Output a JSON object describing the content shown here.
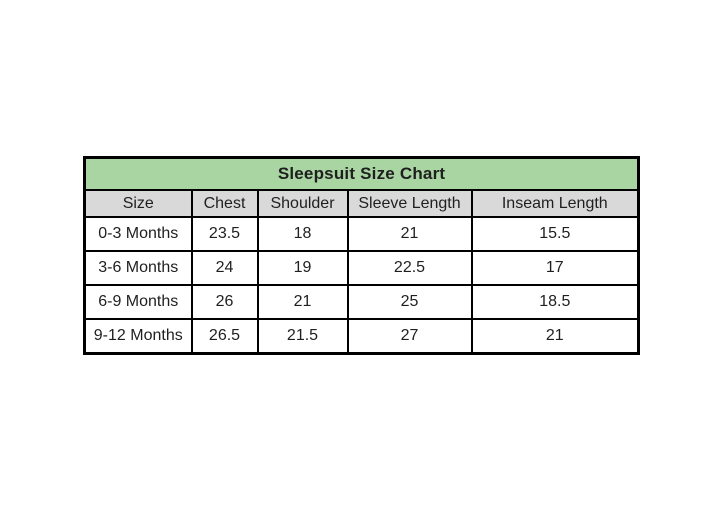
{
  "page": {
    "background_color": "#ffffff"
  },
  "table": {
    "title": "Sleepsuit Size Chart",
    "header": [
      "Size",
      "Chest",
      "Shoulder",
      "Sleeve Length",
      "Inseam Length"
    ],
    "rows": [
      [
        "0-3 Months",
        "23.5",
        "18",
        "21",
        "15.5"
      ],
      [
        "3-6 Months",
        "24",
        "19",
        "22.5",
        "17"
      ],
      [
        "6-9 Months",
        "26",
        "21",
        "25",
        "18.5"
      ],
      [
        "9-12 Months",
        "26.5",
        "21.5",
        "27",
        "21"
      ]
    ],
    "colors": {
      "title_background": "#a8d5a2",
      "header_background": "#d9d9d9",
      "border": "#000000",
      "text": "#1f1f1f"
    }
  },
  "chart_data": {
    "type": "table",
    "title": "Sleepsuit Size Chart",
    "columns": [
      "Size",
      "Chest",
      "Shoulder",
      "Sleeve Length",
      "Inseam Length"
    ],
    "rows": [
      {
        "size": "0-3 Months",
        "chest": 23.5,
        "shoulder": 18,
        "sleeve_length": 21,
        "inseam_length": 15.5
      },
      {
        "size": "3-6 Months",
        "chest": 24,
        "shoulder": 19,
        "sleeve_length": 22.5,
        "inseam_length": 17
      },
      {
        "size": "6-9 Months",
        "chest": 26,
        "shoulder": 21,
        "sleeve_length": 25,
        "inseam_length": 18.5
      },
      {
        "size": "9-12 Months",
        "chest": 26.5,
        "shoulder": 21.5,
        "sleeve_length": 27,
        "inseam_length": 21
      }
    ]
  }
}
